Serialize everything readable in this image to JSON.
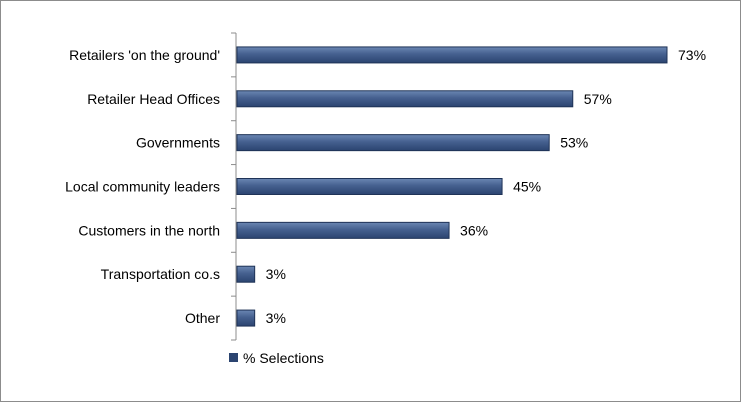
{
  "chart_data": {
    "type": "bar",
    "orientation": "horizontal",
    "categories": [
      "Retailers 'on the ground'",
      "Retailer Head Offices",
      "Governments",
      "Local community leaders",
      "Customers in the north",
      "Transportation co.s",
      "Other"
    ],
    "series": [
      {
        "name": "% Selections",
        "values": [
          73,
          57,
          53,
          45,
          36,
          3,
          3
        ],
        "data_labels": [
          "73%",
          "57%",
          "53%",
          "45%",
          "36%",
          "3%",
          "3%"
        ]
      }
    ],
    "xlim": [
      0,
      73
    ],
    "grid": false,
    "legend_position": "bottom-left",
    "colors": {
      "bar_top": "#6b87b3",
      "bar_bottom": "#2b4470",
      "bar_edge": "#1f3357",
      "axis": "#8c8c8c",
      "legend_swatch": "#2b4470"
    }
  }
}
